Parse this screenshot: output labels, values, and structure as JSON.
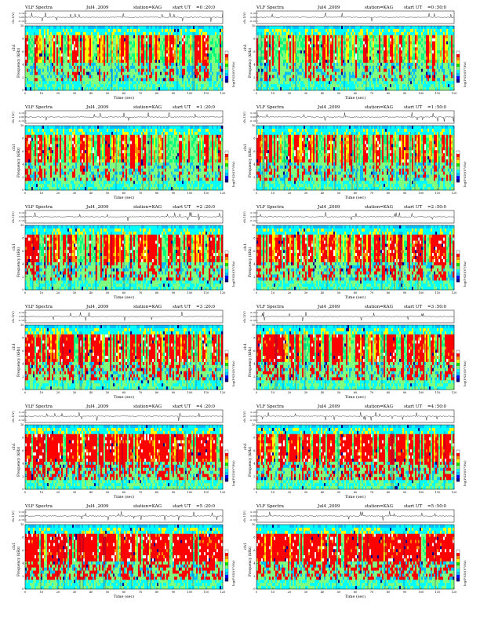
{
  "document": {
    "labels": {
      "title": "VLF Spectra",
      "date": "Jul4 ,2009",
      "station": "station=KAG",
      "start": "start  UT",
      "voltage_axis": "ch.1(V)",
      "freq_axis_top": "ch1",
      "freq_axis": "Frequency (kHz)",
      "time_axis": "Time (sec)",
      "colorbar_label": "log(PSD)(V²/Hz)"
    },
    "voltage_ticks": [
      "0.10",
      "0.00",
      "-0.10"
    ],
    "freq_ticks": [
      "10",
      "8",
      "6",
      "4",
      "2",
      "0"
    ],
    "time_ticks": [
      "0",
      "10",
      "20",
      "30",
      "40",
      "50",
      "60",
      "70",
      "80",
      "90",
      "100",
      "110",
      "120"
    ],
    "panels": [
      {
        "start_ut": "=0 :20:0",
        "title_left": "VLF Spectra",
        "date": "Jul4 ,2009",
        "station": "station=KAG",
        "start_label": "start  UT"
      },
      {
        "start_ut": "=0 :50:0",
        "title_left": "VLF Spectra",
        "date": "Jul4 ,2009",
        "station": "station=KAG",
        "start_label": "start  UT"
      },
      {
        "start_ut": "=1 :20:0",
        "title_left": "VLF Spectra",
        "date": "Jul4 ,2009",
        "station": "station=KAG",
        "start_label": "start  UT"
      },
      {
        "start_ut": "=1 :50:0",
        "title_left": "VLF Spectra",
        "date": "Jul4 ,2009",
        "station": "station=KAG",
        "start_label": "start  UT"
      },
      {
        "start_ut": "=2 :20:0",
        "title_left": "VLF Spectra",
        "date": "Jul4 ,2009",
        "station": "station=KAG",
        "start_label": "start  UT"
      },
      {
        "start_ut": "=2 :50:0",
        "title_left": "VLF Spectra",
        "date": "Jul4 ,2009",
        "station": "station=KAG",
        "start_label": "start  UT"
      },
      {
        "start_ut": "=3 :20:0",
        "title_left": "VLF Spectra",
        "date": "Jul4 ,2009",
        "station": "station=KAG",
        "start_label": "start  UT"
      },
      {
        "start_ut": "=3 :50:0",
        "title_left": "VLF Spectra",
        "date": "Jul4 ,2009",
        "station": "station=KAG",
        "start_label": "start  UT"
      },
      {
        "start_ut": "=4 :20:0",
        "title_left": "VLF Spectra",
        "date": "Jul4 ,2009",
        "station": "station=KAG",
        "start_label": "start  UT"
      },
      {
        "start_ut": "=4 :50:0",
        "title_left": "VLF Spectra",
        "date": "Jul4 ,2009",
        "station": "station=KAG",
        "start_label": "start  UT"
      },
      {
        "start_ut": "=5 :20:0",
        "title_left": "VLF Spectra",
        "date": "Jul4 ,2009",
        "station": "station=KAG",
        "start_label": "start  UT"
      },
      {
        "start_ut": "=5 :50:0",
        "title_left": "VLF Spectra",
        "date": "Jul4 ,2009",
        "station": "station=KAG",
        "start_label": "start  UT"
      }
    ]
  },
  "chart_data": {
    "type": "heatmap",
    "title": "VLF Spectra",
    "xlabel": "Time (sec)",
    "ylabel": "Frequency (kHz)",
    "waveform_ylabel": "ch.1(V)",
    "colorbar_label": "log(PSD)(V²/Hz)",
    "colormap": [
      "#00008b",
      "#0000ff",
      "#00bfff",
      "#00ffff",
      "#7fff7f",
      "#00e000",
      "#ffff00",
      "#ff8c00",
      "#ff0000",
      "#ffffff"
    ],
    "xlim": [
      0,
      120
    ],
    "ylim": [
      0,
      10
    ],
    "waveform_ylim": [
      -0.1,
      0.1
    ],
    "x_ticks": [
      0,
      10,
      20,
      30,
      40,
      50,
      60,
      70,
      80,
      90,
      100,
      110,
      120
    ],
    "y_ticks": [
      0,
      2,
      4,
      6,
      8,
      10
    ],
    "panel_count": 12,
    "grid": false
  }
}
